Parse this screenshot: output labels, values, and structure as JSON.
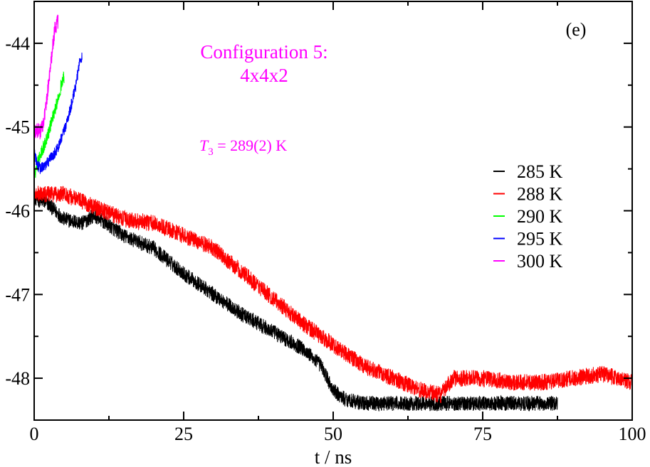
{
  "chart_data": {
    "type": "line",
    "panel_label": "(e)",
    "title_line1": "Configuration 5:",
    "title_line2": "4x4x2",
    "annotation": {
      "symbol": "T",
      "subscript": "3",
      "text": " = 289(2) K"
    },
    "xlabel": "t / ns",
    "ylabel": "",
    "xlim": [
      0,
      100
    ],
    "ylim": [
      -48.5,
      -43.5
    ],
    "x_ticks": [
      0,
      25,
      50,
      75,
      100
    ],
    "x_tick_labels": [
      "0",
      "25",
      "50",
      "75",
      "100"
    ],
    "y_ticks": [
      -44,
      -45,
      -46,
      -47,
      -48
    ],
    "y_tick_labels": [
      "-44",
      "-45",
      "-46",
      "-47",
      "-48"
    ],
    "legend_position": "center-right",
    "series": [
      {
        "name": "285 K",
        "color": "#000000",
        "noise": 0.09,
        "x": [
          0,
          2,
          5,
          8,
          10,
          15,
          20,
          25,
          30,
          35,
          40,
          45,
          48,
          50,
          52,
          55,
          60,
          65,
          70,
          75,
          80,
          85,
          87.5
        ],
        "y": [
          -45.85,
          -45.9,
          -46.1,
          -46.15,
          -46.05,
          -46.3,
          -46.45,
          -46.75,
          -47.0,
          -47.25,
          -47.45,
          -47.65,
          -47.85,
          -48.15,
          -48.25,
          -48.3,
          -48.3,
          -48.3,
          -48.3,
          -48.3,
          -48.3,
          -48.3,
          -48.3
        ]
      },
      {
        "name": "288 K",
        "color": "#ff0000",
        "noise": 0.1,
        "x": [
          0,
          5,
          10,
          15,
          20,
          25,
          30,
          35,
          40,
          45,
          50,
          55,
          60,
          65,
          68,
          70,
          75,
          80,
          85,
          90,
          95,
          100
        ],
        "y": [
          -45.8,
          -45.8,
          -45.95,
          -46.1,
          -46.15,
          -46.3,
          -46.45,
          -46.75,
          -47.05,
          -47.35,
          -47.6,
          -47.85,
          -48.0,
          -48.15,
          -48.2,
          -48.0,
          -48.0,
          -48.05,
          -48.05,
          -48.0,
          -47.95,
          -48.05
        ]
      },
      {
        "name": "290 K",
        "color": "#00ff00",
        "noise": 0.08,
        "x": [
          0,
          0.5,
          1,
          1.5,
          2,
          2.5,
          3,
          3.5,
          4,
          4.5,
          5
        ],
        "y": [
          -45.6,
          -45.45,
          -45.35,
          -45.25,
          -45.15,
          -45.05,
          -44.9,
          -44.8,
          -44.65,
          -44.5,
          -44.4
        ]
      },
      {
        "name": "295 K",
        "color": "#0000ff",
        "noise": 0.07,
        "x": [
          0,
          0.5,
          1,
          2,
          3,
          4,
          5,
          6,
          7,
          7.5,
          8
        ],
        "y": [
          -45.3,
          -45.45,
          -45.5,
          -45.45,
          -45.35,
          -45.25,
          -45.05,
          -44.8,
          -44.5,
          -44.25,
          -44.15
        ]
      },
      {
        "name": "300 K",
        "color": "#ff00ff",
        "noise": 0.1,
        "x": [
          0,
          0.5,
          1,
          1.5,
          2,
          2.5,
          3,
          3.5,
          4
        ],
        "y": [
          -45.05,
          -45.05,
          -45.05,
          -44.95,
          -44.75,
          -44.4,
          -44.1,
          -43.8,
          -43.75
        ]
      }
    ]
  },
  "colors": {
    "annotation": "#ff00ff",
    "title": "#ff00ff",
    "axis": "#000000"
  }
}
